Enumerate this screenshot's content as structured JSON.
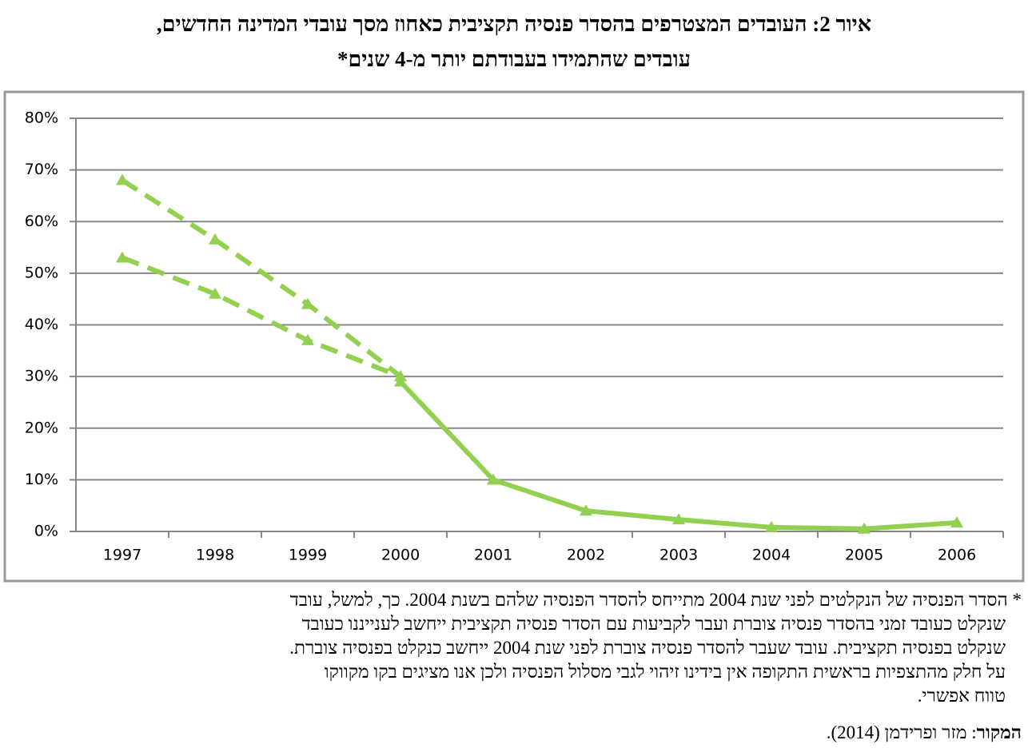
{
  "chart_data": {
    "type": "line",
    "title_lines": [
      "איור 2: העובדים המצטרפים בהסדר פנסיה תקציבית כאחוז מסך עובדי המדינה החדשים,",
      "עובדים שהתמידו בעבודתם יותר מ-4 שנים*"
    ],
    "categories": [
      "1997",
      "1998",
      "1999",
      "2000",
      "2001",
      "2002",
      "2003",
      "2004",
      "2005",
      "2006"
    ],
    "series": [
      {
        "color": "#92d050",
        "dashed": true,
        "values": [
          68,
          56.5,
          44,
          30,
          null,
          null,
          null,
          null,
          null,
          null
        ]
      },
      {
        "color": "#92d050",
        "dashed": true,
        "values": [
          53,
          46,
          37,
          30,
          null,
          null,
          null,
          null,
          null,
          null
        ]
      },
      {
        "color": "#92d050",
        "dashed": false,
        "values": [
          null,
          null,
          null,
          29,
          10,
          4,
          2.3,
          0.8,
          0.5,
          1.7
        ]
      }
    ],
    "ylim": [
      0,
      80
    ],
    "yticks": [
      {
        "value": 0,
        "label": "0%"
      },
      {
        "value": 10,
        "label": "10%"
      },
      {
        "value": 20,
        "label": "20%"
      },
      {
        "value": 30,
        "label": "30%"
      },
      {
        "value": 40,
        "label": "40%"
      },
      {
        "value": 50,
        "label": "50%"
      },
      {
        "value": 60,
        "label": "60%"
      },
      {
        "value": 70,
        "label": "70%"
      },
      {
        "value": 80,
        "label": "80%"
      }
    ],
    "grid": true,
    "marker": "triangle"
  },
  "footnote_lines": [
    "* הסדר הפנסיה של הנקלטים לפני שנת 2004 מתייחס להסדר הפנסיה שלהם בשנת 2004. כך, למשל, עובד",
    "שנקלט כעובד זמני בהסדר פנסיה צוברת ועבר לקביעות עם הסדר פנסיה תקציבית ייחשב לענייננו כעובד",
    "שנקלט בפנסיה תקציבית. עובד שעבר להסדר פנסיה צוברת לפני שנת 2004 ייחשב כנקלט בפנסיה צוברת.",
    "על חלק מהתצפיות בראשית התקופה אין בידינו זיהוי לגבי מסלול הפנסיה ולכן אנו מציגים בקו מקווקו",
    "טווח אפשרי."
  ],
  "source": {
    "label": "המקור",
    "text": ": מזר ופרידמן (2014)."
  }
}
